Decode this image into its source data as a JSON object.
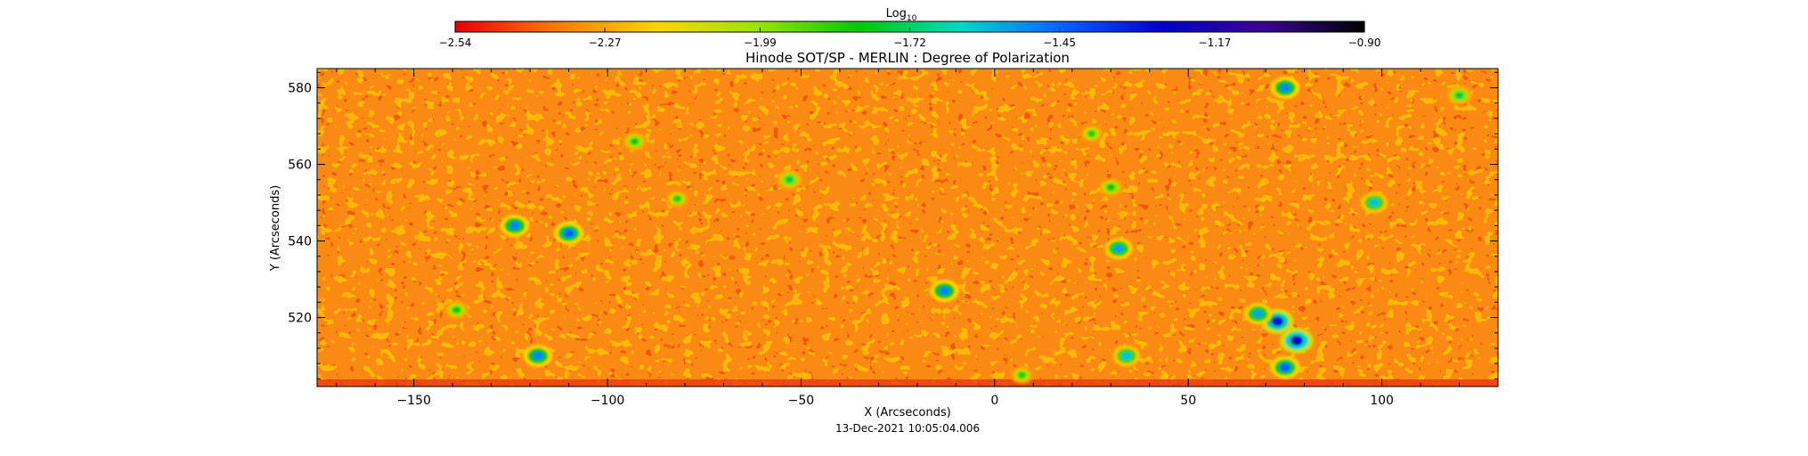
{
  "chart_data": {
    "type": "heatmap",
    "title": "Hinode SOT/SP - MERLIN : Degree of Polarization",
    "xlabel": "X (Arcseconds)",
    "ylabel": "Y (Arcseconds)",
    "xlim": [
      -175,
      130
    ],
    "ylim": [
      502,
      585
    ],
    "x_ticks": [
      -150,
      -100,
      -50,
      0,
      50,
      100
    ],
    "x_tick_labels": [
      "−150",
      "−100",
      "−50",
      "0",
      "50",
      "100"
    ],
    "y_ticks": [
      520,
      540,
      560,
      580
    ],
    "y_tick_labels": [
      "520",
      "540",
      "560",
      "580"
    ],
    "timestamp": "13-Dec-2021 10:05:04.006",
    "colorbar": {
      "label": "Log",
      "label_subscript": "10",
      "min": -2.54,
      "max": -0.9,
      "ticks": [
        -2.54,
        -2.27,
        -1.99,
        -1.72,
        -1.45,
        -1.17,
        -0.9
      ],
      "tick_labels": [
        "−2.54",
        "−2.27",
        "−1.99",
        "−1.72",
        "−1.45",
        "−1.17",
        "−0.90"
      ],
      "colors": [
        "#e60000",
        "#ff7a00",
        "#ffd400",
        "#9ae600",
        "#00c800",
        "#00d8c8",
        "#0064ff",
        "#0000c8",
        "#3c0096",
        "#000000"
      ]
    },
    "background_level": -2.35,
    "features": [
      {
        "x": 73,
        "y": 519,
        "value": -1.3
      },
      {
        "x": 78,
        "y": 514,
        "value": -1.25
      },
      {
        "x": 75,
        "y": 507,
        "value": -1.45
      },
      {
        "x": 68,
        "y": 521,
        "value": -1.55
      },
      {
        "x": -110,
        "y": 542,
        "value": -1.45
      },
      {
        "x": -124,
        "y": 544,
        "value": -1.5
      },
      {
        "x": -118,
        "y": 510,
        "value": -1.5
      },
      {
        "x": -13,
        "y": 527,
        "value": -1.5
      },
      {
        "x": 32,
        "y": 538,
        "value": -1.55
      },
      {
        "x": 34,
        "y": 510,
        "value": -1.6
      },
      {
        "x": 98,
        "y": 550,
        "value": -1.6
      },
      {
        "x": 75,
        "y": 580,
        "value": -1.5
      },
      {
        "x": -53,
        "y": 556,
        "value": -1.75
      },
      {
        "x": -93,
        "y": 566,
        "value": -1.8
      },
      {
        "x": 30,
        "y": 554,
        "value": -1.8
      },
      {
        "x": 120,
        "y": 578,
        "value": -1.75
      },
      {
        "x": -82,
        "y": 551,
        "value": -1.85
      },
      {
        "x": -139,
        "y": 522,
        "value": -1.8
      },
      {
        "x": 7,
        "y": 505,
        "value": -1.85
      },
      {
        "x": 25,
        "y": 568,
        "value": -1.85
      }
    ]
  }
}
